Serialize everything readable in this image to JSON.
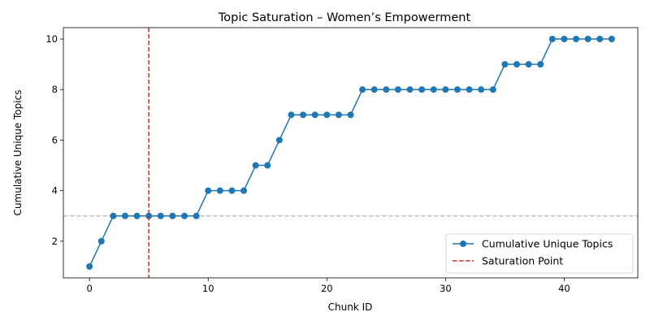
{
  "chart_data": {
    "type": "line",
    "title": "Topic Saturation – Women’s Empowerment",
    "xlabel": "Chunk ID",
    "ylabel": "Cumulative Unique Topics",
    "xlim": [
      -2.2,
      46.2
    ],
    "ylim": [
      0.55,
      10.45
    ],
    "xticks": [
      0,
      10,
      20,
      30,
      40
    ],
    "yticks": [
      2,
      4,
      6,
      8,
      10
    ],
    "grid": false,
    "legend_position": "lower-right",
    "series": [
      {
        "name": "Cumulative Unique Topics",
        "color": "#1f77b4",
        "marker": "circle",
        "x": [
          0,
          1,
          2,
          3,
          4,
          5,
          6,
          7,
          8,
          9,
          10,
          11,
          12,
          13,
          14,
          15,
          16,
          17,
          18,
          19,
          20,
          21,
          22,
          23,
          24,
          25,
          26,
          27,
          28,
          29,
          30,
          31,
          32,
          33,
          34,
          35,
          36,
          37,
          38,
          39,
          40,
          41,
          42,
          43,
          44
        ],
        "values": [
          1,
          2,
          3,
          3,
          3,
          3,
          3,
          3,
          3,
          3,
          4,
          4,
          4,
          4,
          5,
          5,
          6,
          7,
          7,
          7,
          7,
          7,
          7,
          8,
          8,
          8,
          8,
          8,
          8,
          8,
          8,
          8,
          8,
          8,
          8,
          9,
          9,
          9,
          9,
          10,
          10,
          10,
          10,
          10,
          10
        ]
      }
    ],
    "reference_lines": [
      {
        "name": "Saturation Point",
        "orientation": "vertical",
        "x": 5,
        "color": "#d62728",
        "style": "dashed",
        "in_legend": true
      },
      {
        "name": "",
        "orientation": "horizontal",
        "y": 3,
        "color": "#bfbfbf",
        "style": "dashed",
        "in_legend": false
      }
    ]
  }
}
